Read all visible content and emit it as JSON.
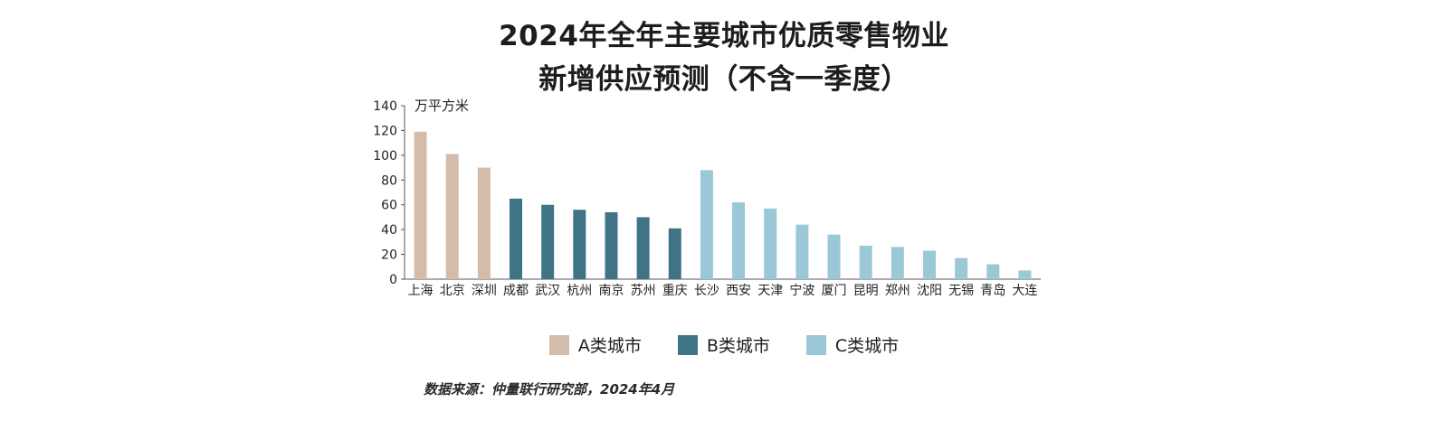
{
  "title_line1": "2024年全年主要城市优质零售物业",
  "title_line2": "新增供应预测（不含一季度）",
  "source": "数据来源：仲量联行研究部，2024年4月",
  "chart_data": {
    "type": "bar",
    "ylabel": "万平方米",
    "ylim": [
      0,
      140
    ],
    "yticks": [
      0,
      20,
      40,
      60,
      80,
      100,
      120,
      140
    ],
    "grid": false,
    "categories": [
      "上海",
      "北京",
      "深圳",
      "成都",
      "武汉",
      "杭州",
      "南京",
      "苏州",
      "重庆",
      "长沙",
      "西安",
      "天津",
      "宁波",
      "厦门",
      "昆明",
      "郑州",
      "沈阳",
      "无锡",
      "青岛",
      "大连"
    ],
    "values": [
      119,
      101,
      90,
      65,
      60,
      56,
      54,
      50,
      41,
      88,
      62,
      57,
      44,
      36,
      27,
      26,
      23,
      17,
      12,
      7
    ],
    "groups": [
      "A",
      "A",
      "A",
      "B",
      "B",
      "B",
      "B",
      "B",
      "B",
      "C",
      "C",
      "C",
      "C",
      "C",
      "C",
      "C",
      "C",
      "C",
      "C",
      "C"
    ],
    "legend_position": "bottom",
    "legend": [
      {
        "key": "A",
        "label": "A类城市",
        "color": "#d4bcaa"
      },
      {
        "key": "B",
        "label": "B类城市",
        "color": "#3e7486"
      },
      {
        "key": "C",
        "label": "C类城市",
        "color": "#9ac8d6"
      }
    ]
  }
}
